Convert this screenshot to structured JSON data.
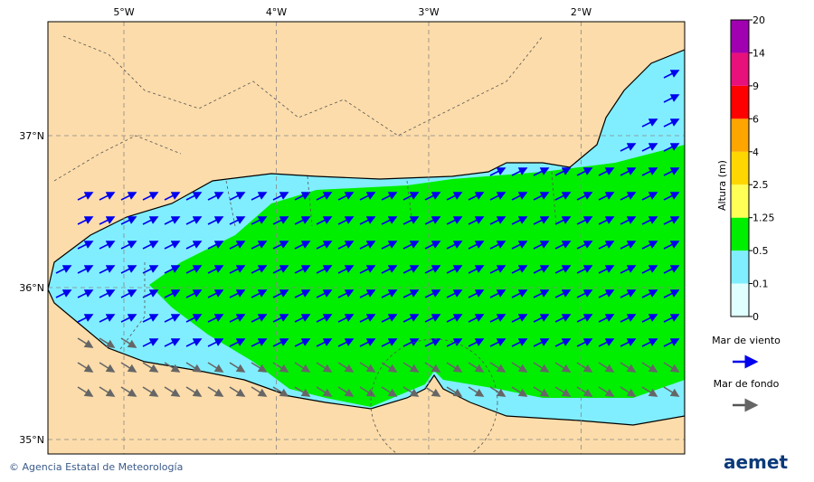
{
  "map": {
    "lon_ticks": [
      "5°W",
      "4°W",
      "3°W",
      "2°W"
    ],
    "lat_ticks": [
      "37°N",
      "36°N",
      "35°N"
    ]
  },
  "colorbar": {
    "title": "Altura (m)",
    "labels": [
      "0",
      "0.1",
      "0.5",
      "1.25",
      "2.5",
      "4",
      "6",
      "9",
      "14",
      "20"
    ],
    "colors": [
      "#e0ffff",
      "#80eeff",
      "#00ee00",
      "#ffff55",
      "#ffd700",
      "#ffa500",
      "#ff0000",
      "#e8107a",
      "#a000b0"
    ]
  },
  "legend": [
    {
      "label": "Mar de viento",
      "color": "#0000ee"
    },
    {
      "label": "Mar de fondo",
      "color": "#555555"
    }
  ],
  "footer": {
    "credit": "© Agencia Estatal de Meteorología",
    "logo": "aemet"
  }
}
